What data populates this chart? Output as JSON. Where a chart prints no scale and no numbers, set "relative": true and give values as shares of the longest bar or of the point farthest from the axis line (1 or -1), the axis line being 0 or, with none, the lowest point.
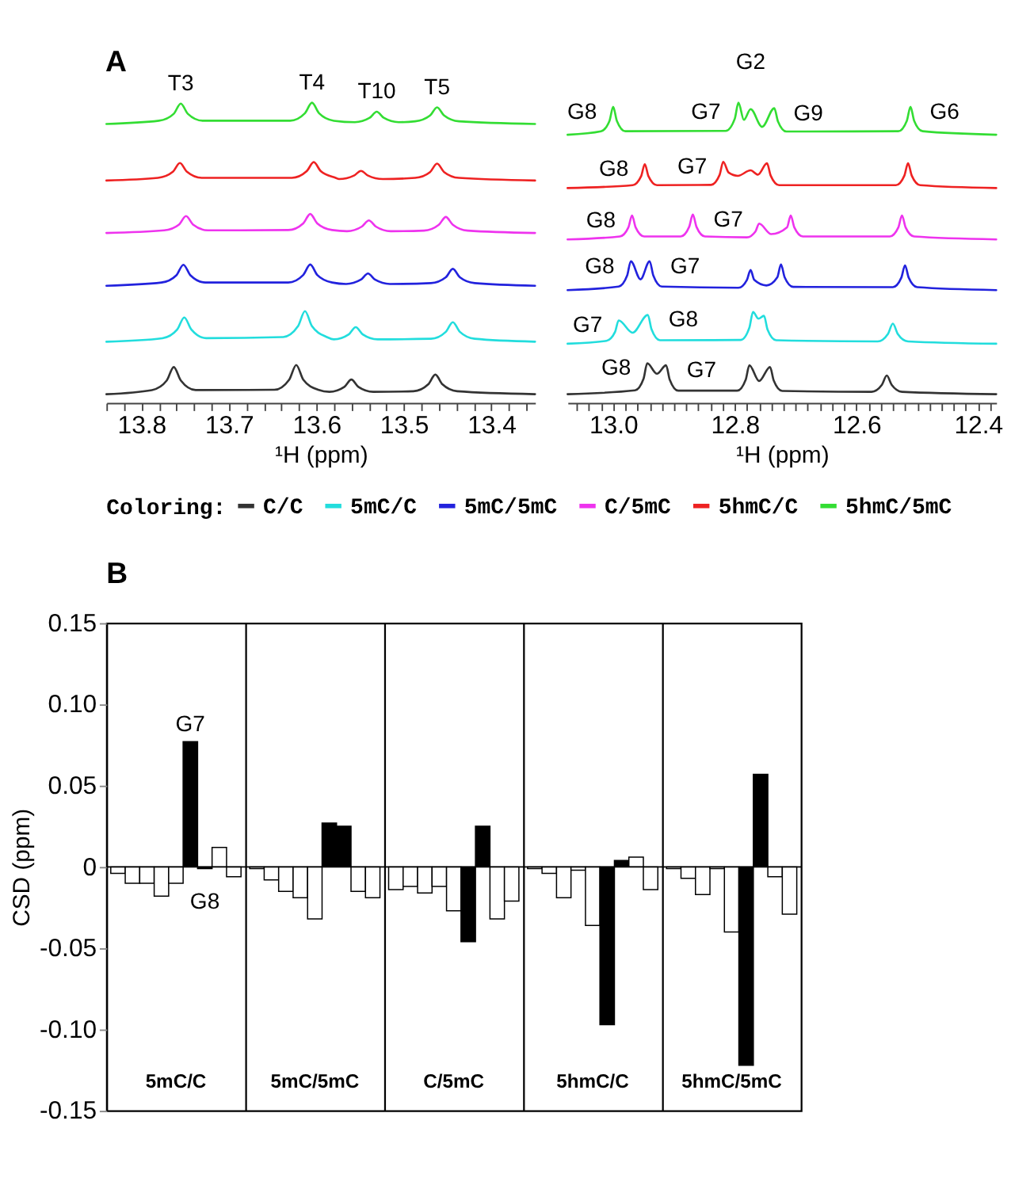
{
  "chart_data": [
    {
      "type": "line",
      "title": "A",
      "relative": true,
      "xlabel": "¹H (ppm)",
      "legend": "bottom",
      "legend_title": "Coloring:",
      "grid": false,
      "xlim": [
        13.84,
        13.35
      ],
      "xticks": [
        {
          "value": 13.84,
          "label": null
        },
        {
          "value": 13.82,
          "label": null
        },
        13.8,
        {
          "value": 13.78,
          "label": null
        },
        {
          "value": 13.76,
          "label": null
        },
        {
          "value": 13.74,
          "label": null
        },
        {
          "value": 13.72,
          "label": null
        },
        13.7,
        {
          "value": 13.68,
          "label": null
        },
        {
          "value": 13.66,
          "label": null
        },
        {
          "value": 13.64,
          "label": null
        },
        {
          "value": 13.62,
          "label": null
        },
        13.6,
        {
          "value": 13.58,
          "label": null
        },
        {
          "value": 13.56,
          "label": null
        },
        {
          "value": 13.54,
          "label": null
        },
        {
          "value": 13.52,
          "label": null
        },
        13.5,
        {
          "value": 13.48,
          "label": null
        },
        {
          "value": 13.46,
          "label": null
        },
        {
          "value": 13.44,
          "label": null
        },
        {
          "value": 13.42,
          "label": null
        },
        13.4,
        {
          "value": 13.38,
          "label": null
        },
        {
          "value": 13.36,
          "label": null
        }
      ],
      "annotations": [
        {
          "text": "T3",
          "x": 13.755,
          "y": 0.997
        },
        {
          "text": "T4",
          "x": 13.605,
          "y": 1.0
        },
        {
          "text": "T10",
          "x": 13.531,
          "y": 0.969
        },
        {
          "text": "T5",
          "x": 13.462,
          "y": 0.984
        }
      ],
      "series": [
        {
          "name": "C/C",
          "color": "#333333",
          "x": [
            13.84,
            13.788,
            13.771,
            13.763,
            13.755,
            13.738,
            13.648,
            13.631,
            13.623,
            13.615,
            13.598,
            13.585,
            13.568,
            13.56,
            13.552,
            13.535,
            13.489,
            13.472,
            13.464,
            13.456,
            13.439,
            13.35
          ],
          "values": [
            0,
            0.014,
            0.047,
            0.093,
            0.047,
            0.014,
            0.015,
            0.05,
            0.1,
            0.05,
            0.015,
            0.008,
            0.025,
            0.05,
            0.025,
            0.008,
            0.01,
            0.034,
            0.067,
            0.034,
            0.01,
            0
          ]
        },
        {
          "name": "5mC/C",
          "color": "#22dddd",
          "x": [
            13.84,
            13.776,
            13.759,
            13.751,
            13.743,
            13.726,
            13.638,
            13.621,
            13.613,
            13.605,
            13.588,
            13.58,
            13.563,
            13.555,
            13.547,
            13.53,
            13.469,
            13.452,
            13.444,
            13.436,
            13.419,
            13.35
          ],
          "values": [
            0.18,
            0.192,
            0.222,
            0.263,
            0.222,
            0.192,
            0.196,
            0.233,
            0.285,
            0.233,
            0.196,
            0.188,
            0.205,
            0.23,
            0.205,
            0.188,
            0.19,
            0.214,
            0.247,
            0.214,
            0.19,
            0.18
          ]
        },
        {
          "name": "5mC/5mC",
          "color": "#2222dd",
          "x": [
            13.84,
            13.777,
            13.76,
            13.752,
            13.744,
            13.727,
            13.632,
            13.615,
            13.607,
            13.599,
            13.582,
            13.566,
            13.549,
            13.541,
            13.533,
            13.516,
            13.469,
            13.452,
            13.444,
            13.436,
            13.419,
            13.35
          ],
          "values": [
            0.372,
            0.383,
            0.408,
            0.444,
            0.408,
            0.383,
            0.383,
            0.409,
            0.445,
            0.409,
            0.383,
            0.378,
            0.393,
            0.414,
            0.393,
            0.378,
            0.381,
            0.401,
            0.43,
            0.401,
            0.381,
            0.372
          ]
        },
        {
          "name": "C/5mC",
          "color": "#ee33ee",
          "x": [
            13.84,
            13.774,
            13.757,
            13.749,
            13.741,
            13.724,
            13.632,
            13.615,
            13.607,
            13.599,
            13.582,
            13.565,
            13.548,
            13.54,
            13.532,
            13.515,
            13.477,
            13.46,
            13.452,
            13.444,
            13.427,
            13.35
          ],
          "values": [
            0.553,
            0.562,
            0.582,
            0.611,
            0.582,
            0.562,
            0.563,
            0.586,
            0.618,
            0.586,
            0.563,
            0.559,
            0.575,
            0.596,
            0.575,
            0.559,
            0.561,
            0.581,
            0.608,
            0.581,
            0.561,
            0.553
          ]
        },
        {
          "name": "5hmC/C",
          "color": "#ee2222",
          "x": [
            13.84,
            13.781,
            13.764,
            13.756,
            13.748,
            13.731,
            13.628,
            13.611,
            13.603,
            13.595,
            13.578,
            13.574,
            13.557,
            13.549,
            13.541,
            13.524,
            13.487,
            13.47,
            13.462,
            13.454,
            13.437,
            13.35
          ],
          "values": [
            0.733,
            0.742,
            0.763,
            0.793,
            0.763,
            0.742,
            0.742,
            0.765,
            0.796,
            0.765,
            0.742,
            0.738,
            0.75,
            0.766,
            0.75,
            0.738,
            0.742,
            0.762,
            0.791,
            0.762,
            0.742,
            0.733
          ]
        },
        {
          "name": "5hmC/5mC",
          "color": "#33dd33",
          "x": [
            13.84,
            13.78,
            13.763,
            13.755,
            13.747,
            13.73,
            13.63,
            13.613,
            13.605,
            13.597,
            13.58,
            13.556,
            13.539,
            13.531,
            13.523,
            13.506,
            13.487,
            13.47,
            13.462,
            13.454,
            13.437,
            13.35
          ],
          "values": [
            0.927,
            0.938,
            0.962,
            0.997,
            0.962,
            0.938,
            0.938,
            0.964,
            1.0,
            0.964,
            0.938,
            0.933,
            0.948,
            0.969,
            0.948,
            0.933,
            0.936,
            0.956,
            0.984,
            0.956,
            0.936,
            0.927
          ]
        }
      ]
    },
    {
      "type": "line",
      "relative": true,
      "xlabel": "¹H (ppm)",
      "grid": false,
      "xlim": [
        13.075,
        12.37
      ],
      "xticks": [
        {
          "value": 13.06,
          "label": null
        },
        {
          "value": 13.04,
          "label": null
        },
        {
          "value": 13.02,
          "label": null
        },
        {
          "value": 13.0,
          "label": "13.0"
        },
        {
          "value": 12.98,
          "label": null
        },
        {
          "value": 12.96,
          "label": null
        },
        {
          "value": 12.94,
          "label": null
        },
        {
          "value": 12.92,
          "label": null
        },
        {
          "value": 12.9,
          "label": null
        },
        {
          "value": 12.88,
          "label": null
        },
        {
          "value": 12.86,
          "label": null
        },
        {
          "value": 12.84,
          "label": null
        },
        {
          "value": 12.82,
          "label": null
        },
        12.8,
        {
          "value": 12.78,
          "label": null
        },
        {
          "value": 12.76,
          "label": null
        },
        {
          "value": 12.74,
          "label": null
        },
        {
          "value": 12.72,
          "label": null
        },
        {
          "value": 12.7,
          "label": null
        },
        {
          "value": 12.68,
          "label": null
        },
        {
          "value": 12.66,
          "label": null
        },
        {
          "value": 12.64,
          "label": null
        },
        {
          "value": 12.62,
          "label": null
        },
        12.6,
        {
          "value": 12.58,
          "label": null
        },
        {
          "value": 12.56,
          "label": null
        },
        {
          "value": 12.54,
          "label": null
        },
        {
          "value": 12.52,
          "label": null
        },
        {
          "value": 12.5,
          "label": null
        },
        {
          "value": 12.48,
          "label": null
        },
        {
          "value": 12.46,
          "label": null
        },
        {
          "value": 12.44,
          "label": null
        },
        {
          "value": 12.42,
          "label": null
        },
        12.4,
        {
          "value": 12.38,
          "label": null
        }
      ],
      "annotations": [
        {
          "text": "G8",
          "x": 13.0,
          "y": 0.986
        },
        {
          "text": "G7",
          "x": 12.794,
          "y": 1.0
        },
        {
          "text": "G2",
          "x": 12.774,
          "y": 0.978
        },
        {
          "text": "G9",
          "x": 12.735,
          "y": 0.981
        },
        {
          "text": "G6",
          "x": 12.511,
          "y": 0.986
        },
        {
          "text": "G8",
          "x": 12.948,
          "y": 0.789
        },
        {
          "text": "G7",
          "x": 12.819,
          "y": 0.797
        },
        {
          "text": "G8",
          "x": 12.969,
          "y": 0.613
        },
        {
          "text": "G7",
          "x": 12.869,
          "y": 0.616
        },
        {
          "text": "G8",
          "x": 12.971,
          "y": 0.456
        },
        {
          "text": "G7",
          "x": 12.94,
          "y": 0.456
        },
        {
          "text": "G7",
          "x": 12.991,
          "y": 0.253
        },
        {
          "text": "G8",
          "x": 12.943,
          "y": 0.272
        },
        {
          "text": "G8",
          "x": 12.944,
          "y": 0.106
        },
        {
          "text": "G7",
          "x": 12.913,
          "y": 0.099
        }
      ],
      "series": [
        {
          "color": "#333333",
          "x": [
            13.075,
            12.964,
            12.95,
            12.944,
            12.928,
            12.913,
            12.907,
            12.893,
            12.796,
            12.782,
            12.776,
            12.76,
            12.742,
            12.736,
            12.722,
            12.575,
            12.558,
            12.55,
            12.542,
            12.525,
            12.37
          ],
          "values": [
            0,
            0.013,
            0.053,
            0.106,
            0.07,
            0.099,
            0.05,
            0.012,
            0.012,
            0.05,
            0.099,
            0.045,
            0.093,
            0.047,
            0.011,
            0.008,
            0.032,
            0.064,
            0.032,
            0.008,
            0
          ]
        },
        {
          "color": "#22dddd",
          "x": [
            13.075,
            13.011,
            12.997,
            12.991,
            12.968,
            12.943,
            12.937,
            12.923,
            12.79,
            12.776,
            12.77,
            12.761,
            12.752,
            12.746,
            12.732,
            12.565,
            12.548,
            12.54,
            12.532,
            12.515,
            12.37
          ],
          "values": [
            0.173,
            0.183,
            0.213,
            0.253,
            0.211,
            0.272,
            0.223,
            0.185,
            0.186,
            0.228,
            0.282,
            0.259,
            0.269,
            0.221,
            0.185,
            0.181,
            0.207,
            0.242,
            0.207,
            0.181,
            0.173
          ]
        },
        {
          "color": "#2222dd",
          "x": [
            13.075,
            12.991,
            12.977,
            12.971,
            12.955,
            12.94,
            12.934,
            12.92,
            12.794,
            12.78,
            12.774,
            12.768,
            12.748,
            12.73,
            12.724,
            12.718,
            12.704,
            12.54,
            12.526,
            12.52,
            12.514,
            12.5,
            12.37
          ],
          "values": [
            0.357,
            0.369,
            0.407,
            0.456,
            0.394,
            0.456,
            0.407,
            0.369,
            0.365,
            0.392,
            0.426,
            0.392,
            0.373,
            0.401,
            0.445,
            0.401,
            0.368,
            0.367,
            0.4,
            0.442,
            0.4,
            0.367,
            0.357
          ]
        },
        {
          "color": "#ee33ee",
          "x": [
            13.075,
            12.989,
            12.975,
            12.969,
            12.963,
            12.949,
            12.889,
            12.875,
            12.869,
            12.863,
            12.849,
            12.78,
            12.766,
            12.76,
            12.74,
            12.714,
            12.708,
            12.702,
            12.688,
            12.545,
            12.531,
            12.525,
            12.519,
            12.505,
            12.37
          ],
          "values": [
            0.531,
            0.541,
            0.572,
            0.613,
            0.572,
            0.541,
            0.541,
            0.574,
            0.616,
            0.574,
            0.541,
            0.538,
            0.558,
            0.585,
            0.549,
            0.572,
            0.613,
            0.572,
            0.541,
            0.541,
            0.572,
            0.613,
            0.572,
            0.541,
            0.531
          ]
        },
        {
          "color": "#ee2222",
          "x": [
            13.075,
            12.968,
            12.954,
            12.948,
            12.942,
            12.928,
            12.839,
            12.825,
            12.819,
            12.81,
            12.795,
            12.774,
            12.762,
            12.747,
            12.741,
            12.727,
            12.535,
            12.521,
            12.515,
            12.509,
            12.495,
            12.37
          ],
          "values": [
            0.707,
            0.717,
            0.748,
            0.789,
            0.748,
            0.717,
            0.718,
            0.752,
            0.797,
            0.76,
            0.749,
            0.768,
            0.753,
            0.792,
            0.75,
            0.717,
            0.717,
            0.75,
            0.792,
            0.75,
            0.717,
            0.707
          ]
        },
        {
          "color": "#33dd33",
          "x": [
            13.075,
            13.02,
            13.006,
            13.0,
            12.994,
            12.98,
            12.815,
            12.8,
            12.794,
            12.785,
            12.774,
            12.755,
            12.735,
            12.729,
            12.715,
            12.531,
            12.517,
            12.511,
            12.505,
            12.491,
            12.37
          ],
          "values": [
            0.89,
            0.902,
            0.938,
            0.986,
            0.938,
            0.902,
            0.903,
            0.945,
            1.0,
            0.941,
            0.978,
            0.917,
            0.981,
            0.936,
            0.901,
            0.902,
            0.938,
            0.986,
            0.938,
            0.902,
            0.89
          ]
        }
      ]
    },
    {
      "type": "bar",
      "title": "B",
      "ylabel": "CSD (ppm)",
      "categories": [
        "5mC/C",
        "5mC/5mC",
        "C/5mC",
        "5hmC/C",
        "5hmC/5mC"
      ],
      "series": [
        {
          "color": "#ffffff",
          "values": [
            -0.004,
            -0.001,
            -0.014,
            -0.001,
            -0.001
          ]
        },
        {
          "color": "#ffffff",
          "values": [
            -0.01,
            -0.008,
            -0.012,
            -0.004,
            -0.007
          ]
        },
        {
          "color": "#ffffff",
          "values": [
            -0.01,
            -0.015,
            -0.016,
            -0.019,
            -0.017
          ]
        },
        {
          "color": "#ffffff",
          "values": [
            -0.018,
            -0.019,
            -0.012,
            -0.002,
            -0.001
          ]
        },
        {
          "color": "#ffffff",
          "values": [
            -0.01,
            -0.032,
            -0.027,
            -0.036,
            -0.04
          ]
        },
        {
          "color": "#000000",
          "values": [
            0.077,
            0.027,
            -0.046,
            -0.097,
            -0.122
          ]
        },
        {
          "color": "#000000",
          "values": [
            -0.001,
            0.025,
            0.025,
            0.004,
            0.057
          ]
        },
        {
          "color": "#ffffff",
          "values": [
            0.012,
            -0.015,
            -0.032,
            0.006,
            -0.006
          ]
        },
        {
          "color": "#ffffff",
          "values": [
            -0.006,
            -0.019,
            -0.021,
            -0.014,
            -0.029
          ]
        }
      ],
      "ylim": [
        -0.15,
        0.15
      ],
      "yticks": [
        -0.15,
        {
          "value": -0.1,
          "label": "-0.10"
        },
        -0.05,
        0,
        0.05,
        {
          "value": 0.1,
          "label": "0.10"
        },
        0.15
      ],
      "annotations": [
        {
          "text": "G7",
          "x": "5mC/C",
          "y": 0.077
        },
        {
          "text": "G8",
          "x": "5mC/C",
          "y": -0.001
        }
      ],
      "ref_lines": [
        {
          "axis": "y",
          "value": 0
        }
      ],
      "grid": "x"
    }
  ]
}
